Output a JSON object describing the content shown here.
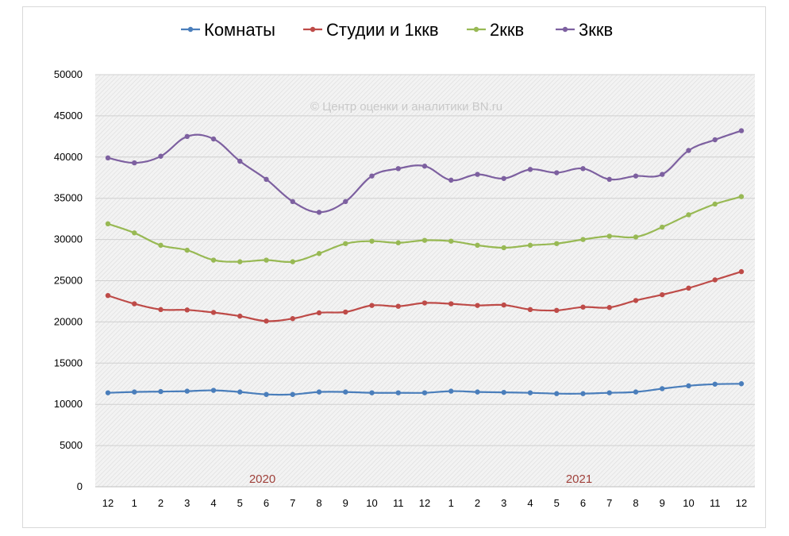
{
  "chart_data": {
    "type": "line",
    "x": [
      "12",
      "1",
      "2",
      "3",
      "4",
      "5",
      "6",
      "7",
      "8",
      "9",
      "10",
      "11",
      "12",
      "1",
      "2",
      "3",
      "4",
      "5",
      "6",
      "7",
      "8",
      "9",
      "10",
      "11",
      "12"
    ],
    "ylim": [
      0,
      50000
    ],
    "yticks": [
      "0",
      "5000",
      "10000",
      "15000",
      "20000",
      "25000",
      "30000",
      "35000",
      "40000",
      "45000",
      "50000"
    ],
    "year_labels": [
      {
        "text": "2020",
        "under_index": 6
      },
      {
        "text": "2021",
        "under_index": 18
      }
    ],
    "watermark": "© Центр оценки и аналитики BN.ru",
    "grid": true,
    "legend_position": "top",
    "colors": {
      "year_label": "#a0413b",
      "plot_bg": "#eeeeee"
    },
    "series": [
      {
        "name": "Комнаты",
        "color": "#4a7ebb",
        "values": [
          11400,
          11500,
          11550,
          11600,
          11700,
          11500,
          11200,
          11200,
          11500,
          11500,
          11400,
          11400,
          11400,
          11600,
          11500,
          11450,
          11400,
          11300,
          11300,
          11400,
          11500,
          11900,
          12250,
          12450,
          12500
        ]
      },
      {
        "name": "Студии и 1ккв",
        "color": "#be4b48",
        "values": [
          23200,
          22200,
          21500,
          21450,
          21150,
          20700,
          20100,
          20400,
          21100,
          21200,
          22000,
          21900,
          22300,
          22200,
          22000,
          22050,
          21500,
          21400,
          21800,
          21750,
          22600,
          23300,
          24100,
          25100,
          26100
        ]
      },
      {
        "name": "2ккв",
        "color": "#98b954",
        "values": [
          31900,
          30800,
          29300,
          28700,
          27500,
          27300,
          27500,
          27300,
          28300,
          29500,
          29800,
          29600,
          29900,
          29800,
          29300,
          29000,
          29300,
          29500,
          30000,
          30400,
          30300,
          31500,
          33000,
          34300,
          35200
        ]
      },
      {
        "name": "3ккв",
        "color": "#7d60a0",
        "values": [
          39900,
          39300,
          40100,
          42500,
          42200,
          39500,
          37300,
          34600,
          33300,
          34600,
          37700,
          38600,
          38900,
          37200,
          37900,
          37400,
          38500,
          38100,
          38600,
          37300,
          37700,
          37900,
          40800,
          42100,
          43200
        ]
      }
    ]
  }
}
